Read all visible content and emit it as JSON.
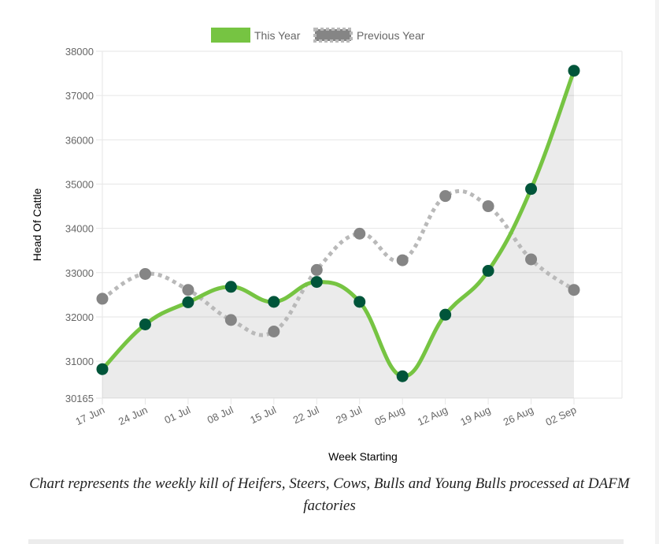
{
  "chart_data": {
    "type": "line",
    "xlabel": "Week Starting",
    "ylabel": "Head Of Cattle",
    "categories": [
      "17 Jun",
      "24 Jun",
      "01 Jul",
      "08 Jul",
      "15 Jul",
      "22 Jul",
      "29 Jul",
      "05 Aug",
      "12 Aug",
      "19 Aug",
      "26 Aug",
      "02 Sep"
    ],
    "ylim": [
      30165,
      38000
    ],
    "yticks": [
      30165,
      31000,
      32000,
      33000,
      34000,
      35000,
      36000,
      37000,
      38000
    ],
    "legend_position": "top",
    "grid": true,
    "series": [
      {
        "name": "This Year",
        "style": "solid",
        "fill": true,
        "color": "#76c442",
        "point_color": "#00553a",
        "values": [
          30820,
          31830,
          32330,
          32680,
          32340,
          32790,
          32340,
          30660,
          32050,
          33040,
          34890,
          37560
        ]
      },
      {
        "name": "Previous Year",
        "style": "dotted",
        "fill": false,
        "color": "#b9b9b9",
        "point_color": "#858585",
        "values": [
          32410,
          32970,
          32610,
          31930,
          31670,
          33060,
          33880,
          33280,
          34730,
          34500,
          33300,
          32610
        ]
      }
    ]
  },
  "caption": "Chart represents the weekly kill of Heifers, Steers, Cows, Bulls and Young Bulls processed at DAFM factories"
}
